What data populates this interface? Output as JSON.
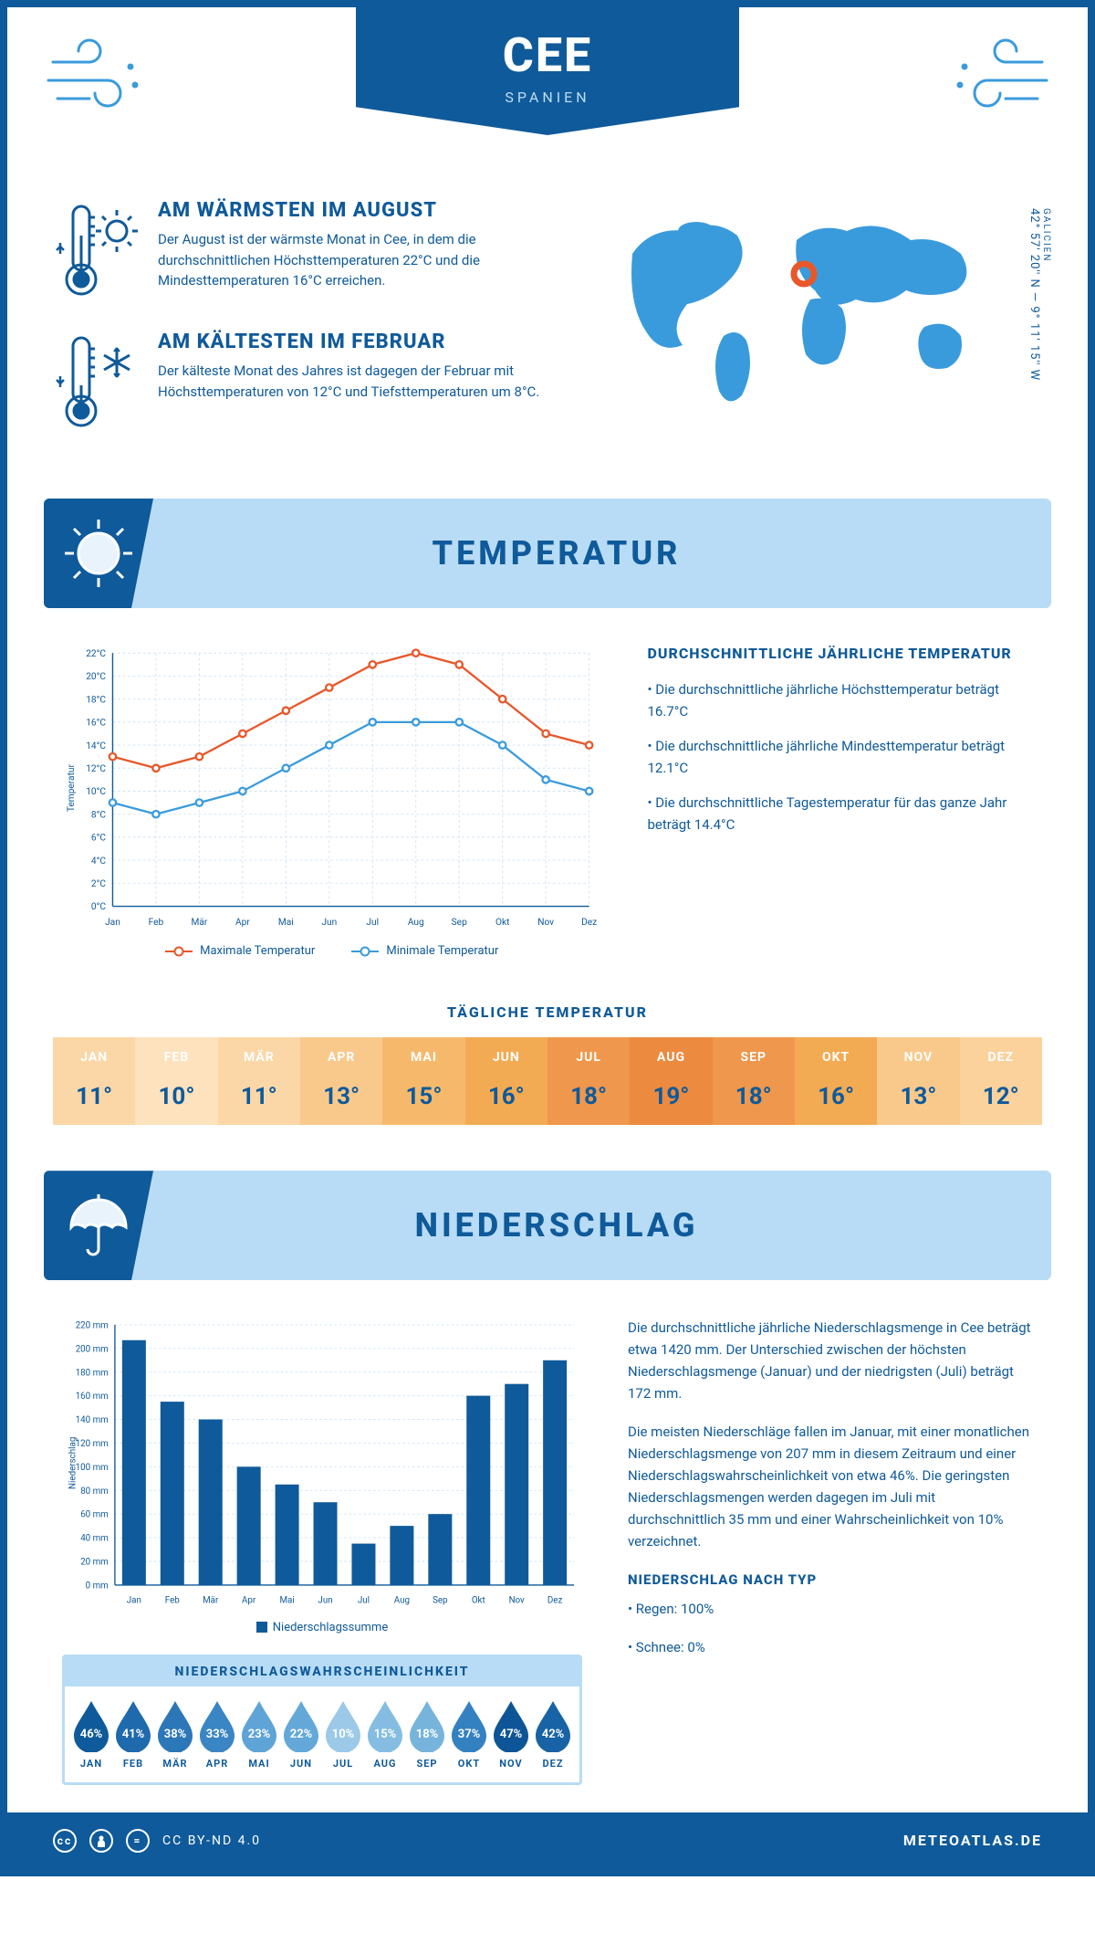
{
  "header": {
    "city": "CEE",
    "country": "SPANIEN"
  },
  "coords": {
    "region": "GALICIEN",
    "text": "42° 57' 20'' N — 9° 11' 15'' W"
  },
  "warmest": {
    "title": "AM WÄRMSTEN IM AUGUST",
    "text": "Der August ist der wärmste Monat in Cee, in dem die durchschnittlichen Höchsttemperaturen 22°C und die Mindesttemperaturen 16°C erreichen."
  },
  "coldest": {
    "title": "AM KÄLTESTEN IM FEBRUAR",
    "text": "Der kälteste Monat des Jahres ist dagegen der Februar mit Höchsttemperaturen von 12°C und Tiefsttemperaturen um 8°C."
  },
  "temperature": {
    "section_title": "TEMPERATUR",
    "text_title": "DURCHSCHNITTLICHE JÄHRLICHE TEMPERATUR",
    "bullets": [
      "• Die durchschnittliche jährliche Höchsttemperatur beträgt 16.7°C",
      "• Die durchschnittliche jährliche Mindesttemperatur beträgt 12.1°C",
      "• Die durchschnittliche Tagestemperatur für das ganze Jahr beträgt 14.4°C"
    ],
    "chart": {
      "months": [
        "Jan",
        "Feb",
        "Mär",
        "Apr",
        "Mai",
        "Jun",
        "Jul",
        "Aug",
        "Sep",
        "Okt",
        "Nov",
        "Dez"
      ],
      "max": [
        13,
        12,
        13,
        15,
        17,
        19,
        21,
        22,
        21,
        18,
        15,
        14
      ],
      "min": [
        9,
        8,
        9,
        10,
        12,
        14,
        16,
        16,
        16,
        14,
        11,
        10
      ],
      "ylim": [
        0,
        22
      ],
      "ytick_step": 2,
      "max_color": "#e8572a",
      "min_color": "#3a9bdc",
      "grid_color": "#cfe3f4",
      "axis_color": "#0f5a9a",
      "y_label": "Temperatur",
      "legend_max": "Maximale Temperatur",
      "legend_min": "Minimale Temperatur"
    },
    "daily": {
      "title": "TÄGLICHE TEMPERATUR",
      "months": [
        "JAN",
        "FEB",
        "MÄR",
        "APR",
        "MAI",
        "JUN",
        "JUL",
        "AUG",
        "SEP",
        "OKT",
        "NOV",
        "DEZ"
      ],
      "values": [
        "11°",
        "10°",
        "11°",
        "13°",
        "15°",
        "16°",
        "18°",
        "19°",
        "18°",
        "16°",
        "13°",
        "12°"
      ],
      "colors": [
        "#fbd7a8",
        "#fde2bd",
        "#fbd7a8",
        "#f9c98b",
        "#f6b96c",
        "#f3ab53",
        "#ef974c",
        "#ec8a3f",
        "#ef974c",
        "#f3ab53",
        "#f9c98b",
        "#fbd19c"
      ]
    }
  },
  "precip": {
    "section_title": "NIEDERSCHLAG",
    "chart": {
      "months": [
        "Jan",
        "Feb",
        "Mär",
        "Apr",
        "Mai",
        "Jun",
        "Jul",
        "Aug",
        "Sep",
        "Okt",
        "Nov",
        "Dez"
      ],
      "values": [
        207,
        155,
        140,
        100,
        85,
        70,
        35,
        50,
        60,
        160,
        170,
        190
      ],
      "ylim": [
        0,
        220
      ],
      "ytick_step": 20,
      "bar_color": "#0f5a9a",
      "grid_color": "#cfe3f4",
      "axis_color": "#0f5a9a",
      "y_label": "Niederschlag",
      "legend": "Niederschlagssumme"
    },
    "text1": "Die durchschnittliche jährliche Niederschlagsmenge in Cee beträgt etwa 1420 mm. Der Unterschied zwischen der höchsten Niederschlagsmenge (Januar) und der niedrigsten (Juli) beträgt 172 mm.",
    "text2": "Die meisten Niederschläge fallen im Januar, mit einer monatlichen Niederschlagsmenge von 207 mm in diesem Zeitraum und einer Niederschlagswahrscheinlichkeit von etwa 46%. Die geringsten Niederschlagsmengen werden dagegen im Juli mit durchschnittlich 35 mm und einer Wahrscheinlichkeit von 10% verzeichnet.",
    "type_title": "NIEDERSCHLAG NACH TYP",
    "type_lines": [
      "• Regen: 100%",
      "• Schnee: 0%"
    ],
    "prob": {
      "title": "NIEDERSCHLAGSWAHRSCHEINLICHKEIT",
      "months": [
        "JAN",
        "FEB",
        "MÄR",
        "APR",
        "MAI",
        "JUN",
        "JUL",
        "AUG",
        "SEP",
        "OKT",
        "NOV",
        "DEZ"
      ],
      "values": [
        "46%",
        "41%",
        "38%",
        "33%",
        "23%",
        "22%",
        "10%",
        "15%",
        "18%",
        "37%",
        "47%",
        "42%"
      ],
      "colors": [
        "#0f5a9a",
        "#1e6aad",
        "#2b77b8",
        "#3a85c3",
        "#5ea4d6",
        "#63a8d9",
        "#9cc9e8",
        "#84bde1",
        "#77b4dc",
        "#3481c1",
        "#0d5596",
        "#1763a5"
      ]
    }
  },
  "footer": {
    "license": "CC BY-ND 4.0",
    "site": "METEOATLAS.DE"
  }
}
